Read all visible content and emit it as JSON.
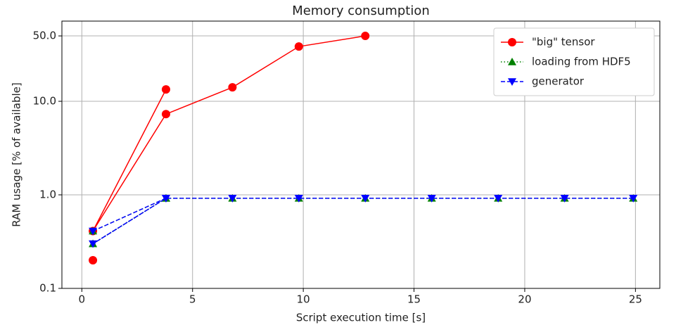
{
  "chart_data": {
    "type": "line",
    "title": "Memory consumption",
    "x_label": "Script execution time [s]",
    "y_label": "RAM usage [% of available]",
    "xlim": [
      -0.9,
      26.1
    ],
    "xticks": [
      0,
      5,
      10,
      15,
      20,
      25
    ],
    "ylim": [
      0.1,
      72
    ],
    "y_scale": "log",
    "yticks": [
      0.1,
      {
        "value": 1,
        "label": "1.0"
      },
      {
        "value": 10,
        "label": "10.0"
      },
      {
        "value": 50,
        "label": "50.0"
      }
    ],
    "grid": true,
    "legend": "upper right",
    "series": [
      {
        "name": "\"big\" tensor",
        "color": "#ff0000",
        "linestyle": "solid",
        "marker": "circle",
        "x": [
          0.5,
          0.5,
          3.8,
          0.5,
          3.8,
          6.8,
          9.8,
          12.8
        ],
        "values": [
          0.2,
          null,
          13.4,
          0.41,
          7.3,
          14.1,
          38.5,
          50
        ]
      },
      {
        "name": "loading from HDF5",
        "color": "#008000",
        "linestyle": "dotted",
        "marker": "triangle-up",
        "x": [
          0.5,
          3.8,
          0.5,
          3.8,
          6.8,
          9.8,
          12.8,
          15.8,
          18.8,
          21.8,
          24.9
        ],
        "values": [
          0.41,
          0.92,
          0.3,
          0.92,
          0.92,
          0.92,
          0.92,
          0.92,
          0.92,
          0.92,
          0.92
        ]
      },
      {
        "name": "generator",
        "color": "#0000ff",
        "linestyle": "dashed",
        "marker": "triangle-down",
        "x": [
          0.5,
          3.8,
          0.5,
          3.8,
          6.8,
          9.8,
          12.8,
          15.8,
          18.8,
          21.8,
          24.9
        ],
        "values": [
          0.41,
          0.92,
          0.3,
          0.92,
          0.92,
          0.92,
          0.92,
          0.92,
          0.92,
          0.92,
          0.92
        ]
      }
    ]
  }
}
